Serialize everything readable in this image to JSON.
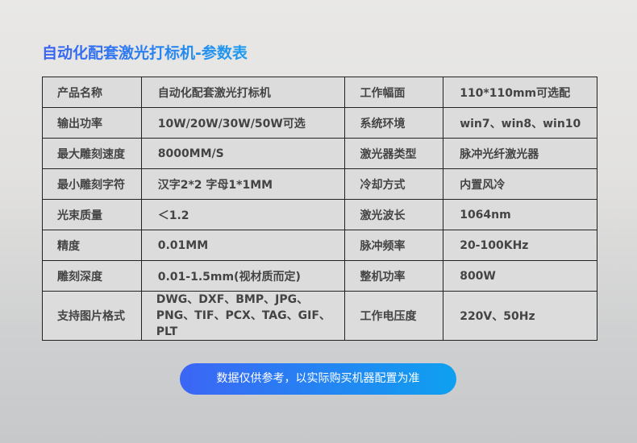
{
  "title": "自动化配套激光打标机-参数表",
  "rows": [
    [
      "产品名称",
      "自动化配套激光打标机",
      "工作幅面",
      "110*110mm可选配"
    ],
    [
      "输出功率",
      "10W/20W/30W/50W可选",
      "系统环境",
      "win7、win8、win10"
    ],
    [
      "最大雕刻速度",
      "8000MM/S",
      "激光器类型",
      "脉冲光纤激光器"
    ],
    [
      "最小雕刻字符",
      "汉字2*2 字母1*1MM",
      "冷却方式",
      "内置风冷"
    ],
    [
      "光束质量",
      "＜1.2",
      "激光波长",
      "1064nm"
    ],
    [
      "精度",
      "0.01MM",
      "脉冲频率",
      "20-100KHz"
    ],
    [
      "雕刻深度",
      "0.01-1.5mm(视材质而定)",
      "整机功率",
      "800W"
    ],
    [
      "支持图片格式",
      "DWG、DXF、BMP、JPG、PNG、TIF、PCX、TAG、GIF、PLT",
      "工作电压度",
      "220V、50Hz"
    ]
  ],
  "note": "数据仅供参考，以实际购买机器配置为准",
  "colors": {
    "title_start": "#3a63f0",
    "title_end": "#1c9cf0",
    "button_start": "#3c66f5",
    "button_end": "#0ea0f0"
  }
}
